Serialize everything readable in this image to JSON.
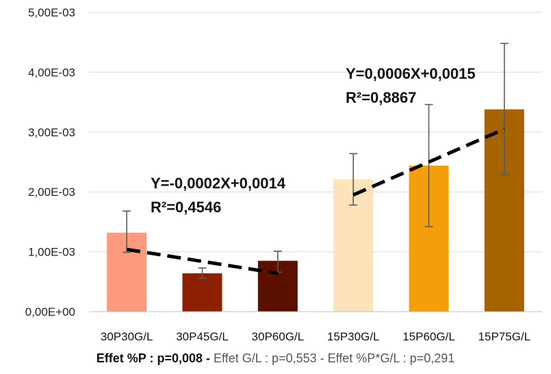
{
  "chart_data": {
    "type": "bar",
    "categories": [
      "30P30G/L",
      "30P45G/L",
      "30P60G/L",
      "15P30G/L",
      "15P60G/L",
      "15P75G/L"
    ],
    "values": [
      0.00132,
      0.00064,
      0.00085,
      0.00221,
      0.00244,
      0.00338
    ],
    "error_low": [
      0.00099,
      0.00056,
      0.00066,
      0.00178,
      0.00142,
      0.00229
    ],
    "error_high": [
      0.00168,
      0.00073,
      0.00101,
      0.00264,
      0.00346,
      0.00448
    ],
    "bar_colors": [
      "#FC9A7E",
      "#8C2000",
      "#5C1100",
      "#FDE3B9",
      "#F59E0B",
      "#A66400"
    ],
    "ylim": [
      0,
      0.005
    ],
    "yticks": [
      0,
      0.001,
      0.002,
      0.003,
      0.004,
      0.005
    ],
    "ytick_labels": [
      "0,00E+00",
      "1,00E-03",
      "2,00E-03",
      "3,00E-03",
      "4,00E-03",
      "5,00E-03"
    ],
    "grid": true,
    "trendlines": [
      {
        "from_category": 0,
        "to_category": 2,
        "y_start": 0.00104,
        "y_end": 0.00064,
        "equation": "Y=-0,0002X+0,0014",
        "r2": "R²=0,4546"
      },
      {
        "from_category": 3,
        "to_category": 5,
        "y_start": 0.00195,
        "y_end": 0.00305,
        "equation": "Y=0,0006X+0,0015",
        "r2": "R²=0,8867"
      }
    ],
    "footer": {
      "effect_p": "Effet %P : p=0,008",
      "sep1": " - ",
      "effect_gl": "Effet G/L : p=0,553",
      "sep2": " - ",
      "effect_pgl": "Effet %P*G/L : p=0,291"
    }
  }
}
